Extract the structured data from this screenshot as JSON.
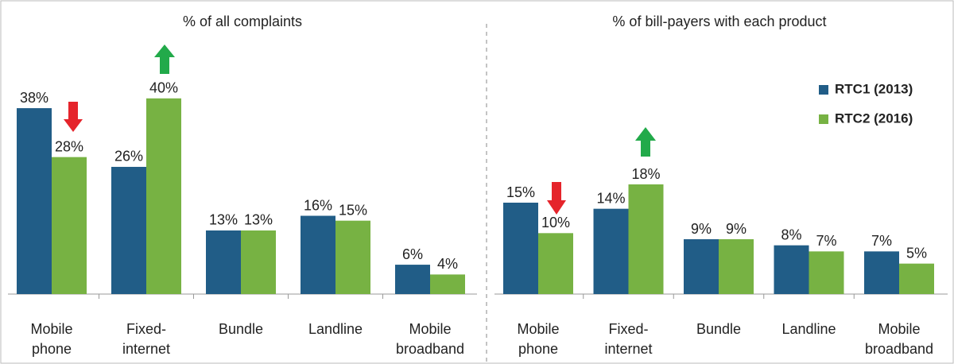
{
  "chart_data": [
    {
      "type": "bar",
      "title": "% of all complaints",
      "categories": [
        "Mobile\nphone",
        "Fixed-\ninternet",
        "Bundle",
        "Landline",
        "Mobile\nbroadband"
      ],
      "series": [
        {
          "color": "#215d87",
          "values": [
            38,
            26,
            13,
            16,
            6
          ],
          "value_labels": [
            "38%",
            "26%",
            "13%",
            "16%",
            "6%"
          ]
        },
        {
          "color": "#77b243",
          "values": [
            28,
            40,
            13,
            15,
            4
          ],
          "value_labels": [
            "28%",
            "40%",
            "13%",
            "15%",
            "4%"
          ]
        }
      ],
      "ylim": [
        0,
        45
      ]
    },
    {
      "type": "bar",
      "title": "% of bill-payers with each product",
      "categories": [
        "Mobile\nphone",
        "Fixed-\ninternet",
        "Bundle",
        "Landline",
        "Mobile\nbroadband"
      ],
      "series": [
        {
          "name": "RTC1 (2013)",
          "color": "#215d87",
          "values": [
            15,
            14,
            9,
            8,
            7
          ],
          "value_labels": [
            "15%",
            "14%",
            "9%",
            "8%",
            "7%"
          ]
        },
        {
          "name": "RTC2 (2016)",
          "color": "#77b243",
          "values": [
            10,
            18,
            9,
            7,
            5
          ],
          "value_labels": [
            "10%",
            "18%",
            "9%",
            "7%",
            "5%"
          ]
        }
      ],
      "ylim": [
        0,
        45
      ],
      "legend": "upper right"
    }
  ]
}
